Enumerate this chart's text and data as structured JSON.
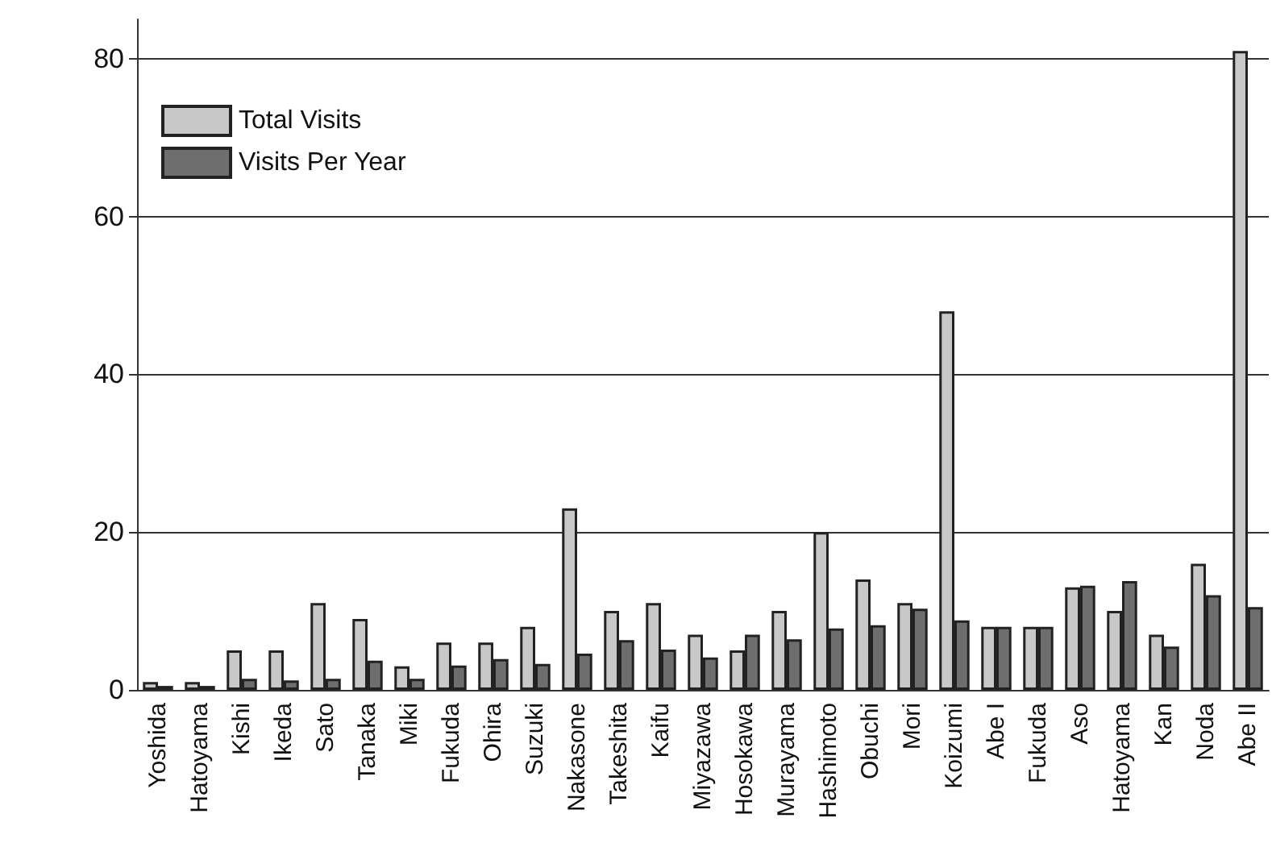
{
  "chart_data": {
    "type": "bar",
    "categories": [
      "Yoshida",
      "Hatoyama",
      "Kishi",
      "Ikeda",
      "Sato",
      "Tanaka",
      "Miki",
      "Fukuda",
      "Ohira",
      "Suzuki",
      "Nakasone",
      "Takeshita",
      "Kaifu",
      "Miyazawa",
      "Hosokawa",
      "Murayama",
      "Hashimoto",
      "Obuchi",
      "Mori",
      "Koizumi",
      "Abe I",
      "Fukuda",
      "Aso",
      "Hatoyama",
      "Kan",
      "Noda",
      "Abe II"
    ],
    "series": [
      {
        "name": "Total Visits",
        "color": "#c8c8c8",
        "values": [
          1,
          1,
          5,
          5,
          11,
          9,
          3,
          6,
          6,
          8,
          23,
          10,
          11,
          7,
          5,
          10,
          20,
          14,
          11,
          48,
          8,
          8,
          13,
          10,
          7,
          16,
          81
        ]
      },
      {
        "name": "Visits Per Year",
        "color": "#6e6e6e",
        "values": [
          0.5,
          0.5,
          1.4,
          1.2,
          1.4,
          3.7,
          1.4,
          3.1,
          3.9,
          3.3,
          4.6,
          6.3,
          5.1,
          4.1,
          7,
          6.4,
          7.8,
          8.2,
          10.3,
          8.8,
          8,
          8,
          13.2,
          13.8,
          5.5,
          12,
          10.5
        ]
      }
    ],
    "ylim": [
      0,
      85
    ],
    "yticks": [
      0,
      20,
      40,
      60,
      80
    ],
    "grid": "y",
    "legend": "top left"
  }
}
